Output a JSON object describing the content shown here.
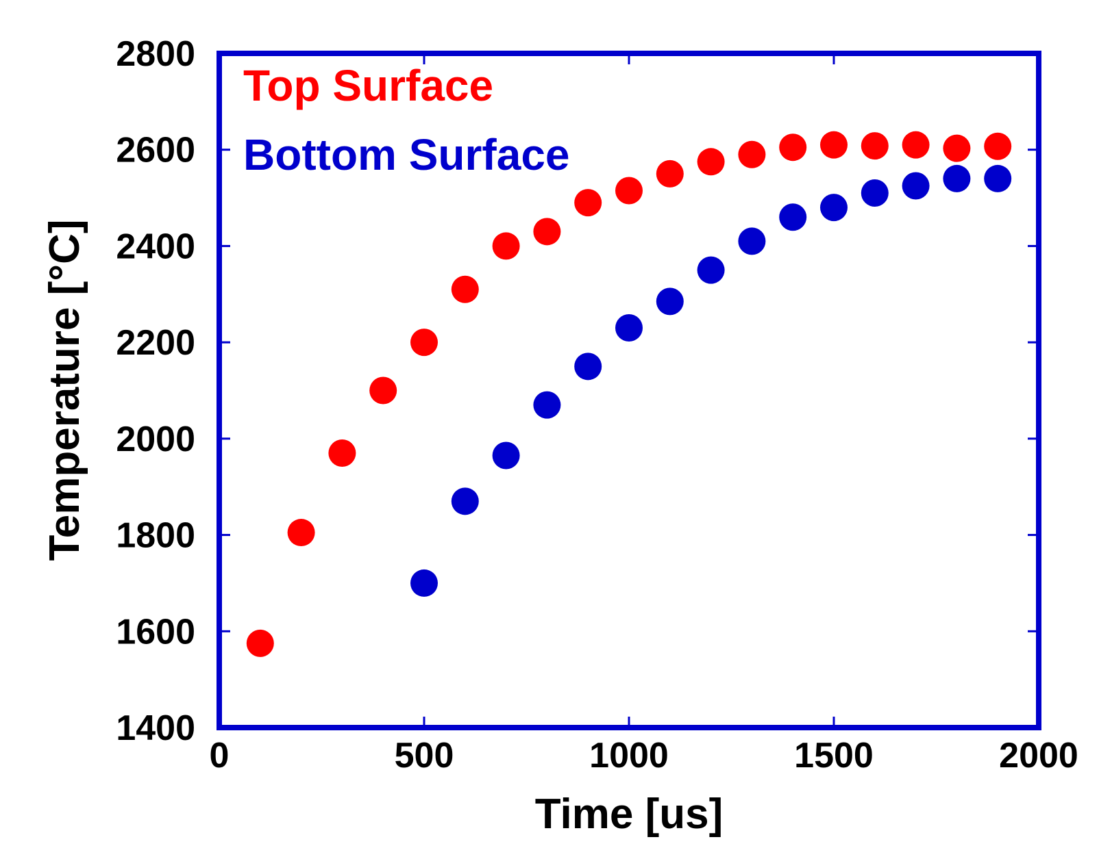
{
  "chart_data": {
    "type": "scatter",
    "title": "",
    "xlabel": "Time [us]",
    "ylabel": "Temperature [°C]",
    "xlim": [
      0,
      2000
    ],
    "ylim": [
      1400,
      2800
    ],
    "xticks": [
      "0",
      "500",
      "1000",
      "1500",
      "2000"
    ],
    "yticks": [
      "1400",
      "1600",
      "1800",
      "2000",
      "2200",
      "2400",
      "2600",
      "2800"
    ],
    "xtick_values": [
      0,
      500,
      1000,
      1500,
      2000
    ],
    "ytick_values": [
      1400,
      1600,
      1800,
      2000,
      2200,
      2400,
      2600,
      2800
    ],
    "grid": false,
    "legend_position": "top-left",
    "axis_color": "#0000cc",
    "series": [
      {
        "name": "Top Surface",
        "color": "#ff0000",
        "x": [
          100,
          200,
          300,
          400,
          500,
          600,
          700,
          800,
          900,
          1000,
          1100,
          1200,
          1300,
          1400,
          1500,
          1600,
          1700,
          1800,
          1900
        ],
        "y": [
          1575,
          1805,
          1970,
          2100,
          2200,
          2310,
          2400,
          2430,
          2490,
          2515,
          2550,
          2575,
          2590,
          2605,
          2610,
          2608,
          2610,
          2603,
          2607
        ]
      },
      {
        "name": "Bottom Surface",
        "color": "#0000cc",
        "x": [
          500,
          600,
          700,
          800,
          900,
          1000,
          1100,
          1200,
          1300,
          1400,
          1500,
          1600,
          1700,
          1800,
          1900
        ],
        "y": [
          1700,
          1870,
          1965,
          2070,
          2150,
          2230,
          2285,
          2350,
          2410,
          2460,
          2480,
          2510,
          2525,
          2540,
          2540
        ]
      }
    ]
  }
}
